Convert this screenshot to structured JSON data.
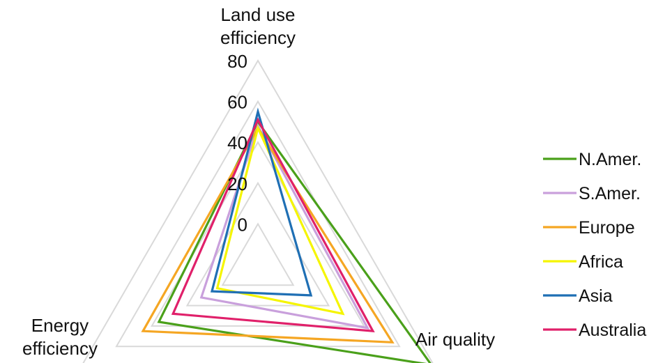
{
  "chart_data": {
    "type": "radar",
    "axes": [
      "Land use efficiency",
      "Air quality",
      "Energy efficiency"
    ],
    "axis_label_lines": [
      [
        "Land use",
        "efficiency"
      ],
      [
        "Air quality"
      ],
      [
        "Energy",
        "efficiency"
      ]
    ],
    "rlim": [
      -20,
      80
    ],
    "ticks": [
      0,
      20,
      40,
      60,
      80
    ],
    "tick_labels": [
      "0",
      "20",
      "40",
      "60",
      "80"
    ],
    "grid": true,
    "legend_position": "right",
    "series": [
      {
        "name": "N.Amer.",
        "color": "#4aa01a",
        "values": [
          50,
          78,
          36
        ]
      },
      {
        "name": "S.Amer.",
        "color": "#c9a0dc",
        "values": [
          48,
          42,
          12
        ]
      },
      {
        "name": "Europe",
        "color": "#f5a623",
        "values": [
          47,
          56,
          45
        ]
      },
      {
        "name": "Africa",
        "color": "#f5f500",
        "values": [
          47,
          28,
          3
        ]
      },
      {
        "name": "Asia",
        "color": "#1f6fb4",
        "values": [
          55,
          10,
          6
        ]
      },
      {
        "name": "Australia",
        "color": "#e0206a",
        "values": [
          51,
          45,
          28
        ]
      }
    ]
  }
}
